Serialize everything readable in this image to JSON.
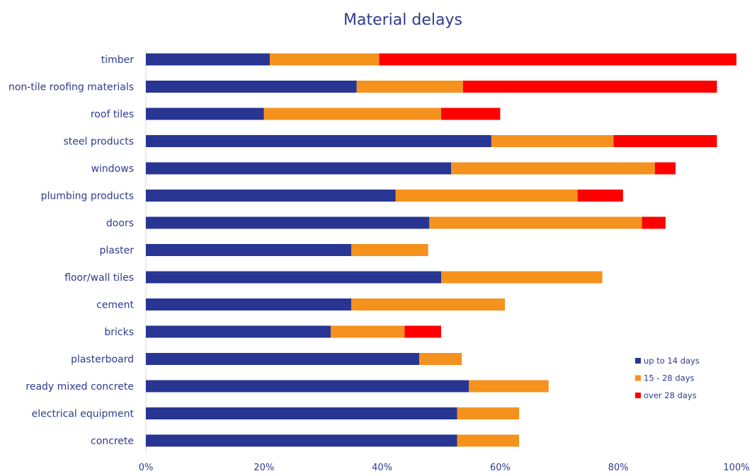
{
  "chart_data": {
    "type": "bar",
    "orientation": "horizontal",
    "stacked": true,
    "title": "Material delays",
    "xlabel": "",
    "ylabel": "",
    "xlim": [
      0,
      100
    ],
    "x_ticks": [
      0,
      20,
      40,
      60,
      80,
      100
    ],
    "x_tick_labels": [
      "0%",
      "20%",
      "40%",
      "60%",
      "80%",
      "100%"
    ],
    "grid": false,
    "legend_position": "lower-right",
    "categories": [
      "timber",
      "non-tile roofing materials",
      "roof tiles",
      "steel products",
      "windows",
      "plumbing products",
      "doors",
      "plaster",
      "floor/wall tiles",
      "cement",
      "bricks",
      "plasterboard",
      "ready mixed concrete",
      "electrical equipment",
      "concrete"
    ],
    "series": [
      {
        "name": "up to 14 days",
        "color": "#283593",
        "values": [
          21,
          35.7,
          20,
          58.5,
          51.7,
          42.3,
          48,
          34.8,
          50,
          34.8,
          31.3,
          46.3,
          54.7,
          52.7,
          52.7
        ]
      },
      {
        "name": "15 - 28 days",
        "color": "#f5921e",
        "values": [
          18.5,
          18,
          30,
          20.7,
          34.5,
          30.8,
          36,
          13,
          27.3,
          26,
          12.5,
          7.2,
          13.5,
          10.5,
          10.5
        ]
      },
      {
        "name": "over 28 days",
        "color": "#ff0000",
        "values": [
          60.5,
          43,
          10,
          17.5,
          3.5,
          7.7,
          4,
          0,
          0,
          0,
          6.2,
          0,
          0,
          0,
          0
        ]
      }
    ]
  }
}
